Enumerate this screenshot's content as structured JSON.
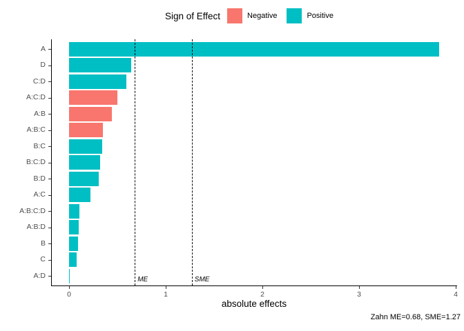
{
  "chart_data": {
    "type": "bar",
    "orientation": "horizontal",
    "title": "",
    "xlabel": "absolute effects",
    "ylabel": "",
    "xlim": [
      0,
      4
    ],
    "x_ticks": [
      0,
      1,
      2,
      3,
      4
    ],
    "grid": false,
    "categories": [
      "A",
      "D",
      "C:D",
      "A:C:D",
      "A:B",
      "A:B:C",
      "B:C",
      "B:C:D",
      "B:D",
      "A:C",
      "A:B:C:D",
      "A:B:D",
      "B",
      "C",
      "A:D"
    ],
    "series": [
      {
        "name": "absolute effects",
        "values": [
          3.83,
          0.64,
          0.59,
          0.5,
          0.44,
          0.35,
          0.34,
          0.32,
          0.31,
          0.22,
          0.11,
          0.1,
          0.09,
          0.08,
          0.01
        ],
        "signs": [
          "Positive",
          "Positive",
          "Positive",
          "Negative",
          "Negative",
          "Negative",
          "Positive",
          "Positive",
          "Positive",
          "Positive",
          "Positive",
          "Positive",
          "Positive",
          "Positive",
          "Positive"
        ]
      }
    ],
    "legend": {
      "title": "Sign of Effect",
      "position": "top",
      "items": [
        {
          "label": "Negative",
          "color": "#F8766D"
        },
        {
          "label": "Positive",
          "color": "#00BFC4"
        }
      ]
    },
    "reference_lines": [
      {
        "label": "ME",
        "value": 0.68
      },
      {
        "label": "SME",
        "value": 1.27
      }
    ],
    "caption": "Zahn ME=0.68, SME=1.27",
    "colors": {
      "negative": "#F8766D",
      "positive": "#00BFC4",
      "axis_text": "#4d4d4d",
      "axis_line": "#000000"
    }
  }
}
